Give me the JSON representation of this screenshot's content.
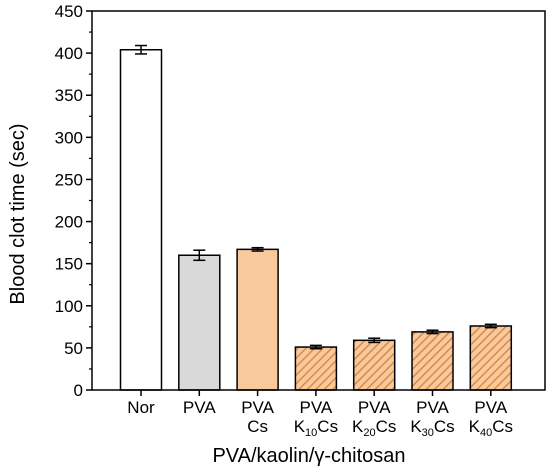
{
  "chart_data": {
    "type": "bar",
    "categories": [
      {
        "lines": [
          "Nor"
        ]
      },
      {
        "lines": [
          "PVA"
        ]
      },
      {
        "lines": [
          "PVA",
          "Cs"
        ]
      },
      {
        "lines": [
          "PVA",
          "K10Cs"
        ],
        "line2_parts": [
          "K",
          "10",
          "Cs"
        ]
      },
      {
        "lines": [
          "PVA",
          "K20Cs"
        ],
        "line2_parts": [
          "K",
          "20",
          "Cs"
        ]
      },
      {
        "lines": [
          "PVA",
          "K30Cs"
        ],
        "line2_parts": [
          "K",
          "30",
          "Cs"
        ]
      },
      {
        "lines": [
          "PVA",
          "K40Cs"
        ],
        "line2_parts": [
          "K",
          "40",
          "Cs"
        ]
      }
    ],
    "values": [
      404,
      160,
      167,
      51,
      59,
      69,
      76
    ],
    "errors": [
      5,
      6,
      2,
      2,
      2.5,
      2,
      2
    ],
    "fills": [
      "#ffffff",
      "#d9d9d9",
      "#f8c99c",
      "hatch",
      "hatch",
      "hatch",
      "hatch"
    ],
    "hatch_colors": {
      "background": "#f8c99c",
      "line": "#d4823c"
    },
    "xlabel": "PVA/kaolin/γ-chitosan",
    "ylabel": "Blood clot time (sec)",
    "ylim": [
      0,
      450
    ],
    "yticks": [
      0,
      50,
      100,
      150,
      200,
      250,
      300,
      350,
      400,
      450
    ],
    "grid": false,
    "legend": "none"
  }
}
